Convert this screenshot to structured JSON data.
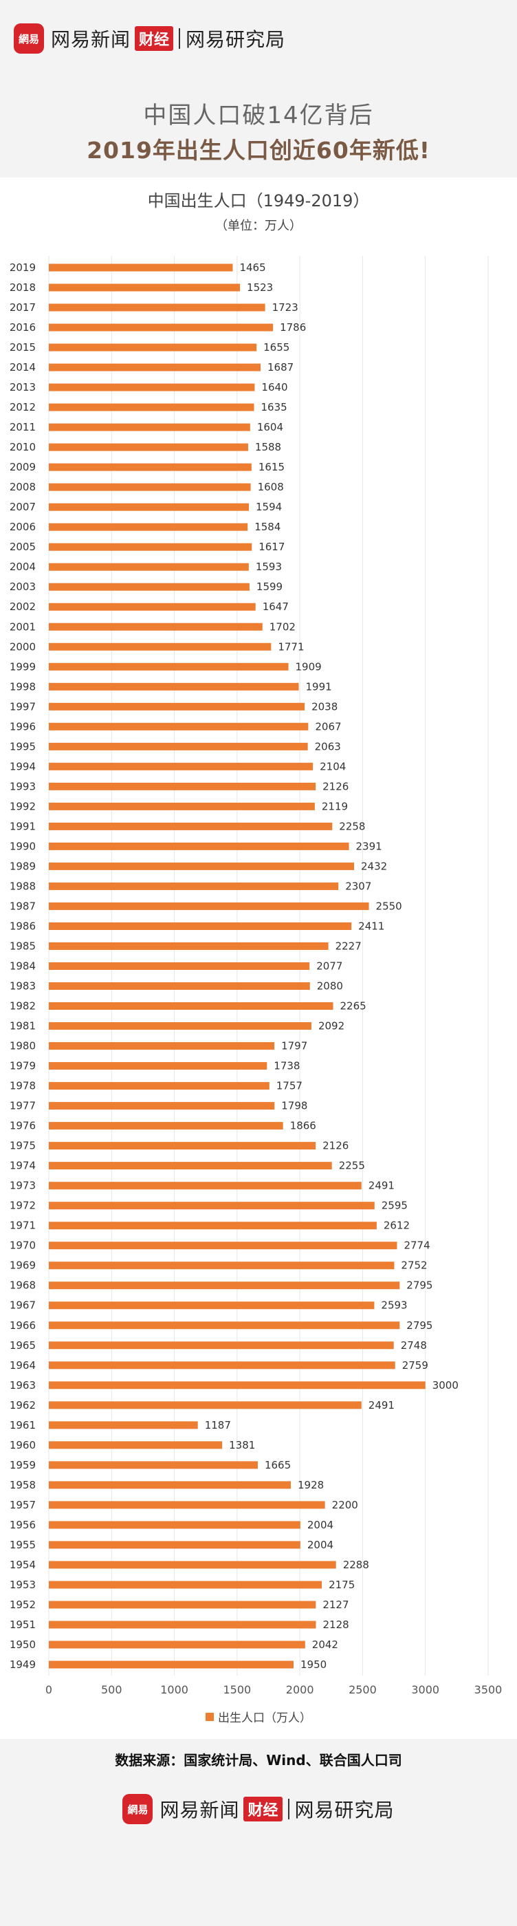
{
  "branding": {
    "badge_text": "網易",
    "site_name": "网易新闻",
    "section": "财经",
    "institute": "网易研究局"
  },
  "titles": {
    "line1": "中国人口破14亿背后",
    "line2": "2019年出生人口创近60年新低!"
  },
  "source_text": "数据来源：国家统计局、Wind、联合国人口司",
  "colors": {
    "bar": "#ed7d31",
    "brand": "#d6242a"
  },
  "chart_data": {
    "type": "bar",
    "orientation": "horizontal",
    "title": "中国出生人口（1949-2019）",
    "unit": "（单位：万人）",
    "categories": [
      "2019",
      "2018",
      "2017",
      "2016",
      "2015",
      "2014",
      "2013",
      "2012",
      "2011",
      "2010",
      "2009",
      "2008",
      "2007",
      "2006",
      "2005",
      "2004",
      "2003",
      "2002",
      "2001",
      "2000",
      "1999",
      "1998",
      "1997",
      "1996",
      "1995",
      "1994",
      "1993",
      "1992",
      "1991",
      "1990",
      "1989",
      "1988",
      "1987",
      "1986",
      "1985",
      "1984",
      "1983",
      "1982",
      "1981",
      "1980",
      "1979",
      "1978",
      "1977",
      "1976",
      "1975",
      "1974",
      "1973",
      "1972",
      "1971",
      "1970",
      "1969",
      "1968",
      "1967",
      "1966",
      "1965",
      "1964",
      "1963",
      "1962",
      "1961",
      "1960",
      "1959",
      "1958",
      "1957",
      "1956",
      "1955",
      "1954",
      "1953",
      "1952",
      "1951",
      "1950",
      "1949"
    ],
    "series": [
      {
        "name": "出生人口（万人）",
        "values": [
          1465,
          1523,
          1723,
          1786,
          1655,
          1687,
          1640,
          1635,
          1604,
          1588,
          1615,
          1608,
          1594,
          1584,
          1617,
          1593,
          1599,
          1647,
          1702,
          1771,
          1909,
          1991,
          2038,
          2067,
          2063,
          2104,
          2126,
          2119,
          2258,
          2391,
          2432,
          2307,
          2550,
          2411,
          2227,
          2077,
          2080,
          2265,
          2092,
          1797,
          1738,
          1757,
          1798,
          1866,
          2126,
          2255,
          2491,
          2595,
          2612,
          2774,
          2752,
          2795,
          2593,
          2795,
          2748,
          2759,
          3000,
          2491,
          1187,
          1381,
          1665,
          1928,
          2200,
          2004,
          2004,
          2288,
          2175,
          2127,
          2128,
          2042,
          1950
        ]
      }
    ],
    "xlim": [
      0,
      3500
    ],
    "xticks": [
      "0",
      "500",
      "1000",
      "1500",
      "2000",
      "2500",
      "3000",
      "3500"
    ],
    "grid": true,
    "legend_position": "bottom"
  }
}
